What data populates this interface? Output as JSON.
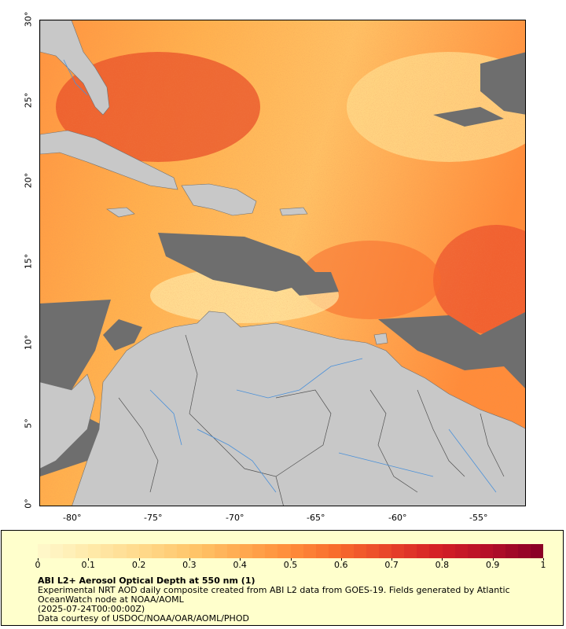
{
  "map": {
    "lat_ticks": [
      "0°",
      "5°",
      "10°",
      "15°",
      "20°",
      "25°",
      "30°"
    ],
    "lon_ticks": [
      "-80°",
      "-75°",
      "-70°",
      "-65°",
      "-60°",
      "-55°"
    ],
    "colors": {
      "no_data": "#6e6e6e",
      "land": "#c8c8c8",
      "rivers": "#4a90d9",
      "borders": "#505050"
    }
  },
  "legend": {
    "ticks": [
      "0",
      "0.1",
      "0.2",
      "0.3",
      "0.4",
      "0.5",
      "0.6",
      "0.7",
      "0.8",
      "0.9",
      "1"
    ],
    "colors": [
      "#fff7c8",
      "#ffe9a8",
      "#ffd98a",
      "#ffc66a",
      "#ffaa50",
      "#ff8c3a",
      "#f76a2c",
      "#e8442a",
      "#d41f26",
      "#b50f28",
      "#8c0026"
    ],
    "title": "ABI L2+ Aerosol Optical Depth at 550 nm (1)",
    "lines": [
      "Experimental NRT AOD daily composite created from ABI L2 data from GOES-19. Fields generated by Atlantic",
      "OceanWatch node at NOAA/AOML",
      "(2025-07-24T00:00:00Z)",
      "Data courtesy of USDOC/NOAA/OAR/AOML/PHOD"
    ]
  }
}
